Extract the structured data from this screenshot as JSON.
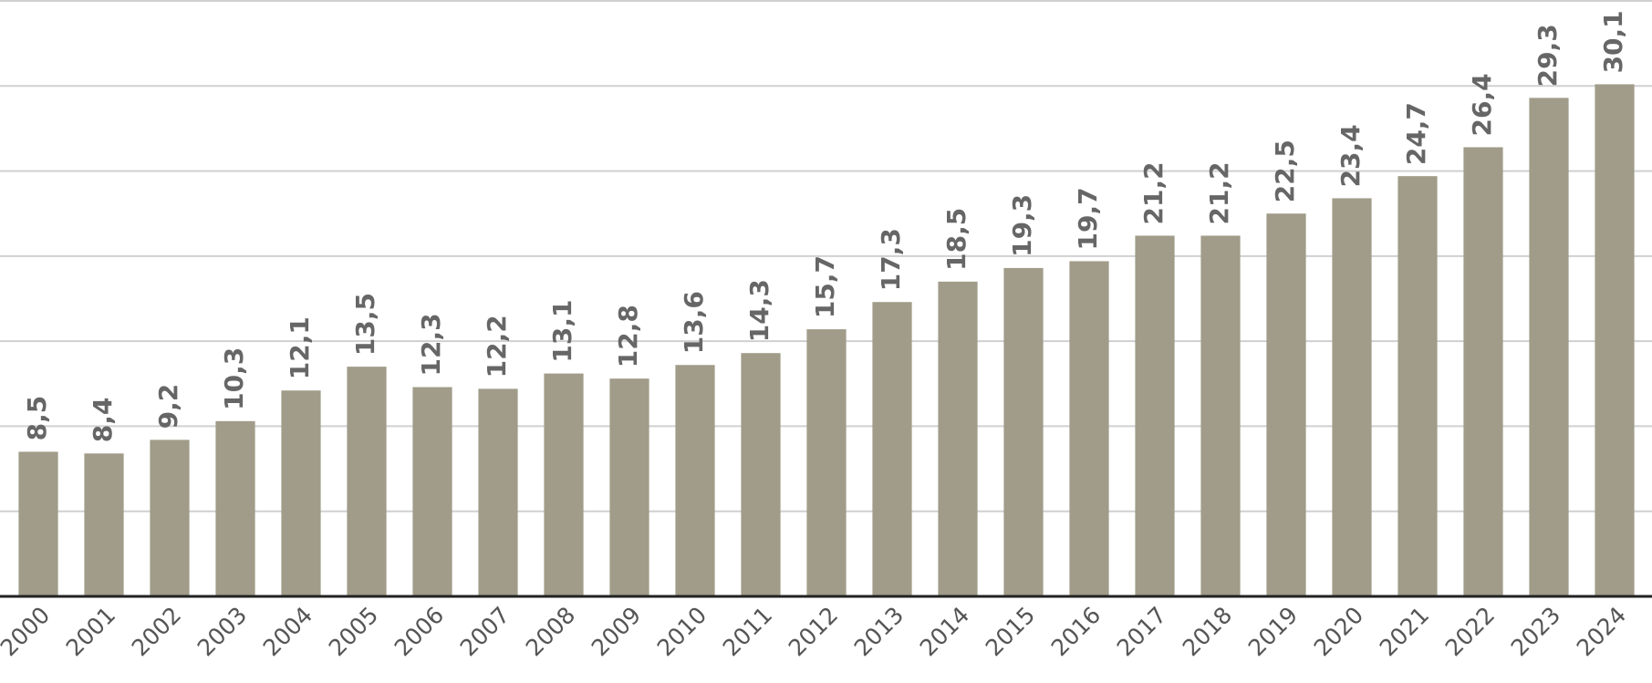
{
  "chart_data": {
    "type": "bar",
    "categories": [
      "2000",
      "2001",
      "2002",
      "2003",
      "2004",
      "2005",
      "2006",
      "2007",
      "2008",
      "2009",
      "2010",
      "2011",
      "2012",
      "2013",
      "2014",
      "2015",
      "2016",
      "2017",
      "2018",
      "2019",
      "2020",
      "2021",
      "2022",
      "2023",
      "2024"
    ],
    "values": [
      8.5,
      8.4,
      9.2,
      10.3,
      12.1,
      13.5,
      12.3,
      12.2,
      13.1,
      12.8,
      13.6,
      14.3,
      15.7,
      17.3,
      18.5,
      19.3,
      19.7,
      21.2,
      21.2,
      22.5,
      23.4,
      24.7,
      26.4,
      29.3,
      30.1
    ],
    "value_labels": [
      "8,5",
      "8,4",
      "9,2",
      "10,3",
      "12,1",
      "13,5",
      "12,3",
      "12,2",
      "13,1",
      "12,8",
      "13,6",
      "14,3",
      "15,7",
      "17,3",
      "18,5",
      "19,3",
      "19,7",
      "21,2",
      "21,2",
      "22,5",
      "23,4",
      "24,7",
      "26,4",
      "29,3",
      "30,1"
    ],
    "color": "#a09c89",
    "ylim": [
      0,
      35
    ],
    "yticks": [
      0,
      5,
      10,
      15,
      20,
      25,
      30,
      35
    ],
    "grid": true
  }
}
